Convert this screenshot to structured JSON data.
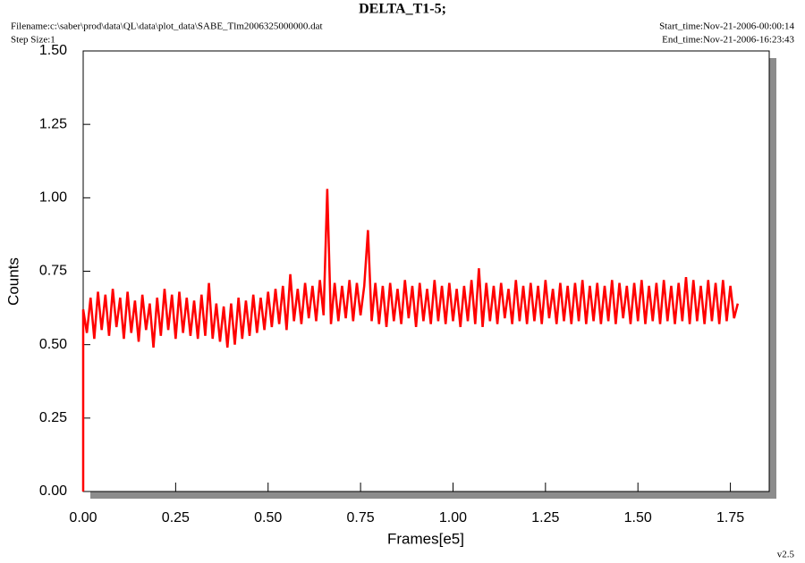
{
  "chart_data": {
    "type": "line",
    "title": "DELTA_T1-5;",
    "filename": "Filename:c:\\saber\\prod\\data\\QL\\data\\plot_data\\SABE_Tlm2006325000000.dat",
    "step_size": "Step Size:1",
    "start_time": "Start_time:Nov-21-2006-00:00:14",
    "end_time": "End_time:Nov-21-2006-16:23:43",
    "version": "v2.5",
    "x_label": "Frames[e5]",
    "y_label": "Counts",
    "xlim": [
      0,
      1.855
    ],
    "ylim": [
      0,
      1.5
    ],
    "xticks": [
      {
        "value": 0,
        "label": "0.00"
      },
      {
        "value": 0.25,
        "label": "0.25"
      },
      {
        "value": 0.5,
        "label": "0.50"
      },
      {
        "value": 0.75,
        "label": "0.75"
      },
      {
        "value": 1,
        "label": "1.00"
      },
      {
        "value": 1.25,
        "label": "1.25"
      },
      {
        "value": 1.5,
        "label": "1.50"
      },
      {
        "value": 1.75,
        "label": "1.75"
      }
    ],
    "yticks": [
      {
        "value": 0,
        "label": "0.00"
      },
      {
        "value": 0.25,
        "label": "0.25"
      },
      {
        "value": 0.5,
        "label": "0.50"
      },
      {
        "value": 0.75,
        "label": "0.75"
      },
      {
        "value": 1,
        "label": "1.00"
      },
      {
        "value": 1.25,
        "label": "1.25"
      },
      {
        "value": 1.5,
        "label": "1.50"
      }
    ],
    "x": [
      0,
      0.0,
      0.01,
      0.02,
      0.03,
      0.04,
      0.05,
      0.06,
      0.07,
      0.08,
      0.09,
      0.1,
      0.11,
      0.12,
      0.13,
      0.14,
      0.15,
      0.16,
      0.17,
      0.18,
      0.19,
      0.2,
      0.21,
      0.22,
      0.23,
      0.24,
      0.25,
      0.26,
      0.27,
      0.28,
      0.29,
      0.3,
      0.31,
      0.32,
      0.33,
      0.34,
      0.35,
      0.36,
      0.37,
      0.38,
      0.39,
      0.4,
      0.41,
      0.42,
      0.43,
      0.44,
      0.45,
      0.46,
      0.47,
      0.48,
      0.49,
      0.5,
      0.51,
      0.52,
      0.53,
      0.54,
      0.55,
      0.56,
      0.57,
      0.58,
      0.59,
      0.6,
      0.61,
      0.62,
      0.63,
      0.64,
      0.65,
      0.66,
      0.67,
      0.68,
      0.69,
      0.7,
      0.71,
      0.72,
      0.73,
      0.74,
      0.75,
      0.76,
      0.77,
      0.78,
      0.79,
      0.8,
      0.81,
      0.82,
      0.83,
      0.84,
      0.85,
      0.86,
      0.87,
      0.88,
      0.89,
      0.9,
      0.91,
      0.92,
      0.93,
      0.94,
      0.95,
      0.96,
      0.97,
      0.98,
      0.99,
      1.0,
      1.01,
      1.02,
      1.03,
      1.04,
      1.05,
      1.06,
      1.07,
      1.08,
      1.09,
      1.1,
      1.11,
      1.12,
      1.13,
      1.14,
      1.15,
      1.16,
      1.17,
      1.18,
      1.19,
      1.2,
      1.21,
      1.22,
      1.23,
      1.24,
      1.25,
      1.26,
      1.27,
      1.28,
      1.29,
      1.3,
      1.31,
      1.32,
      1.33,
      1.34,
      1.35,
      1.36,
      1.37,
      1.38,
      1.39,
      1.4,
      1.41,
      1.42,
      1.43,
      1.44,
      1.45,
      1.46,
      1.47,
      1.48,
      1.49,
      1.5,
      1.51,
      1.52,
      1.53,
      1.54,
      1.55,
      1.56,
      1.57,
      1.58,
      1.59,
      1.6,
      1.61,
      1.62,
      1.63,
      1.64,
      1.65,
      1.66,
      1.67,
      1.68,
      1.69,
      1.7,
      1.71,
      1.72,
      1.73,
      1.74,
      1.75,
      1.76,
      1.77
    ],
    "series": [
      {
        "color": "#ff0000",
        "values": [
          0,
          0.62,
          0.54,
          0.66,
          0.52,
          0.68,
          0.55,
          0.67,
          0.53,
          0.69,
          0.56,
          0.66,
          0.52,
          0.68,
          0.54,
          0.65,
          0.51,
          0.67,
          0.55,
          0.64,
          0.49,
          0.66,
          0.53,
          0.69,
          0.55,
          0.67,
          0.52,
          0.68,
          0.54,
          0.66,
          0.53,
          0.65,
          0.52,
          0.67,
          0.53,
          0.71,
          0.52,
          0.64,
          0.51,
          0.63,
          0.49,
          0.64,
          0.5,
          0.66,
          0.52,
          0.65,
          0.53,
          0.67,
          0.54,
          0.66,
          0.55,
          0.68,
          0.56,
          0.69,
          0.57,
          0.7,
          0.55,
          0.74,
          0.58,
          0.69,
          0.57,
          0.71,
          0.59,
          0.7,
          0.58,
          0.72,
          0.6,
          1.03,
          0.57,
          0.71,
          0.58,
          0.7,
          0.59,
          0.72,
          0.58,
          0.71,
          0.6,
          0.7,
          0.89,
          0.58,
          0.71,
          0.57,
          0.7,
          0.56,
          0.71,
          0.58,
          0.69,
          0.57,
          0.72,
          0.59,
          0.7,
          0.56,
          0.71,
          0.58,
          0.69,
          0.57,
          0.72,
          0.58,
          0.7,
          0.57,
          0.71,
          0.58,
          0.69,
          0.56,
          0.7,
          0.58,
          0.72,
          0.57,
          0.76,
          0.56,
          0.71,
          0.58,
          0.7,
          0.57,
          0.71,
          0.59,
          0.69,
          0.57,
          0.72,
          0.58,
          0.7,
          0.57,
          0.71,
          0.58,
          0.7,
          0.57,
          0.72,
          0.59,
          0.69,
          0.57,
          0.71,
          0.58,
          0.7,
          0.57,
          0.71,
          0.58,
          0.72,
          0.57,
          0.7,
          0.58,
          0.71,
          0.57,
          0.7,
          0.58,
          0.72,
          0.57,
          0.71,
          0.59,
          0.7,
          0.57,
          0.71,
          0.58,
          0.72,
          0.57,
          0.7,
          0.58,
          0.71,
          0.57,
          0.72,
          0.58,
          0.7,
          0.57,
          0.71,
          0.58,
          0.73,
          0.57,
          0.72,
          0.58,
          0.7,
          0.57,
          0.72,
          0.58,
          0.71,
          0.57,
          0.72,
          0.58,
          0.7,
          0.59,
          0.64
        ]
      }
    ]
  }
}
